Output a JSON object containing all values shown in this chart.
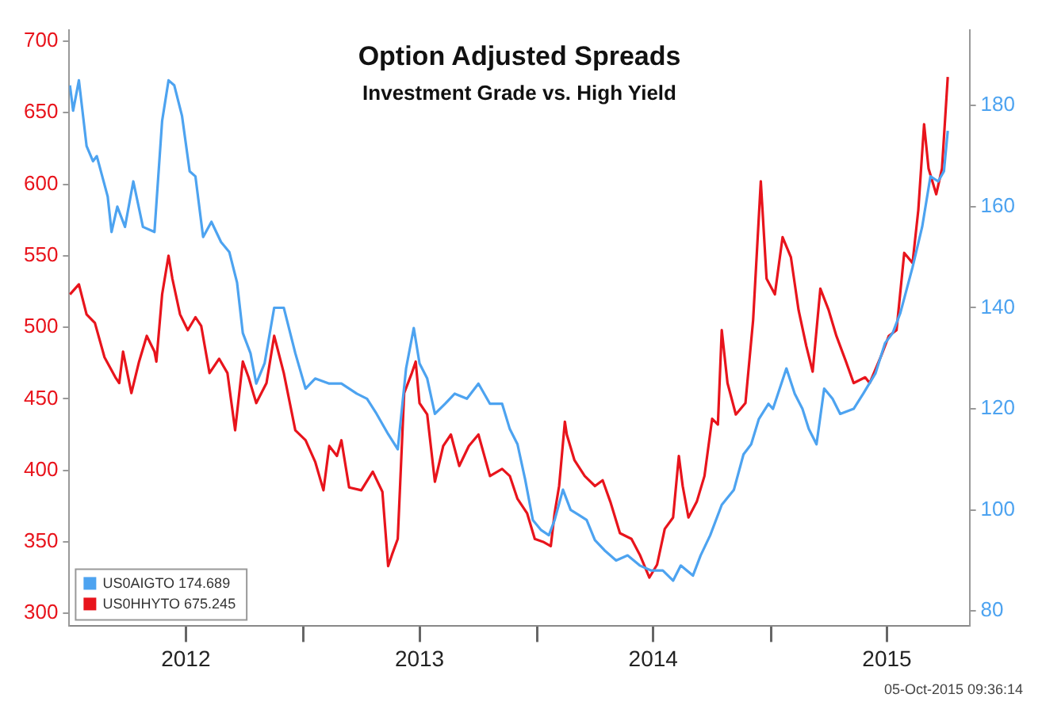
{
  "chart_data": {
    "type": "line",
    "title": "Option Adjusted Spreads",
    "subtitle": "Investment Grade vs. High Yield",
    "annotations": [
      "05-Oct-2015 09:36:14"
    ],
    "xlim": [
      "2012-01-01",
      "2015-11-07"
    ],
    "xticks": [
      {
        "value": "2012-07-01",
        "label": "2012"
      },
      {
        "value": "2013-01-01",
        "label": null
      },
      {
        "value": "2013-07-01",
        "label": "2013"
      },
      {
        "value": "2014-01-01",
        "label": null
      },
      {
        "value": "2014-07-01",
        "label": "2014"
      },
      {
        "value": "2015-01-01",
        "label": null
      },
      {
        "value": "2015-07-01",
        "label": "2015"
      }
    ],
    "ylim": [
      291,
      708
    ],
    "yticks": [
      300,
      350,
      400,
      450,
      500,
      550,
      600,
      650,
      700
    ],
    "y2lim": [
      77,
      195
    ],
    "y2ticks": [
      80,
      100,
      120,
      140,
      160,
      180
    ],
    "grid": false,
    "legend": "bottom left",
    "marker": "none",
    "line_style": "solid",
    "series": [
      {
        "name": "US0AIGTO 174.689",
        "color": "#4da3f0",
        "axis": "y2",
        "x": [
          "2012-01-02",
          "2012-01-07",
          "2012-01-16",
          "2012-01-28",
          "2012-02-07",
          "2012-02-13",
          "2012-03-01",
          "2012-03-07",
          "2012-03-16",
          "2012-03-28",
          "2012-04-10",
          "2012-04-25",
          "2012-05-13",
          "2012-05-25",
          "2012-06-04",
          "2012-06-13",
          "2012-06-25",
          "2012-07-07",
          "2012-07-16",
          "2012-07-28",
          "2012-08-10",
          "2012-08-25",
          "2012-09-07",
          "2012-09-19",
          "2012-09-28",
          "2012-10-10",
          "2012-10-19",
          "2012-11-01",
          "2012-11-16",
          "2012-12-01",
          "2012-12-19",
          "2013-01-04",
          "2013-01-19",
          "2013-02-10",
          "2013-03-01",
          "2013-03-25",
          "2013-04-10",
          "2013-04-25",
          "2013-05-13",
          "2013-05-28",
          "2013-06-10",
          "2013-06-22",
          "2013-07-01",
          "2013-07-13",
          "2013-07-25",
          "2013-08-10",
          "2013-08-25",
          "2013-09-13",
          "2013-10-01",
          "2013-10-19",
          "2013-11-07",
          "2013-11-19",
          "2013-12-01",
          "2013-12-13",
          "2013-12-25",
          "2014-01-07",
          "2014-01-19",
          "2014-01-28",
          "2014-02-10",
          "2014-02-22",
          "2014-03-07",
          "2014-03-19",
          "2014-04-01",
          "2014-04-16",
          "2014-05-04",
          "2014-05-22",
          "2014-06-10",
          "2014-06-28",
          "2014-07-16",
          "2014-08-01",
          "2014-08-13",
          "2014-09-01",
          "2014-09-13",
          "2014-09-28",
          "2014-10-16",
          "2014-11-04",
          "2014-11-19",
          "2014-12-01",
          "2014-12-13",
          "2014-12-28",
          "2015-01-04",
          "2015-01-25",
          "2015-02-07",
          "2015-02-19",
          "2015-03-01",
          "2015-03-13",
          "2015-03-25",
          "2015-04-07",
          "2015-04-19",
          "2015-05-10",
          "2015-05-25",
          "2015-06-13",
          "2015-06-28",
          "2015-07-10",
          "2015-07-22",
          "2015-08-10",
          "2015-08-25",
          "2015-09-07",
          "2015-09-19",
          "2015-09-28",
          "2015-10-04"
        ],
        "values": [
          184,
          179,
          185,
          172,
          169,
          170,
          162,
          155,
          160,
          156,
          165,
          156,
          155,
          177,
          185,
          184,
          178,
          167,
          166,
          154,
          157,
          153,
          151,
          145,
          135,
          131,
          125,
          129,
          140,
          140,
          131,
          124,
          126,
          125,
          125,
          123,
          122,
          119,
          115,
          112,
          128,
          136,
          129,
          126,
          119,
          121,
          123,
          122,
          125,
          121,
          121,
          116,
          113,
          106,
          98,
          96,
          95,
          98,
          104,
          100,
          99,
          98,
          94,
          92,
          90,
          91,
          89,
          88,
          88,
          86,
          89,
          87,
          91,
          95,
          101,
          104,
          111,
          113,
          118,
          121,
          120,
          128,
          123,
          120,
          116,
          113,
          124,
          122,
          119,
          120,
          123,
          127,
          133,
          135,
          139,
          148,
          156,
          166,
          165,
          167,
          175
        ]
      },
      {
        "name": "US0HHYTO 675.245",
        "color": "#e8141c",
        "x": [
          "2012-01-02",
          "2012-01-16",
          "2012-01-28",
          "2012-02-10",
          "2012-02-25",
          "2012-03-13",
          "2012-03-19",
          "2012-03-25",
          "2012-04-07",
          "2012-04-19",
          "2012-05-01",
          "2012-05-13",
          "2012-05-16",
          "2012-05-25",
          "2012-06-04",
          "2012-06-10",
          "2012-06-22",
          "2012-07-04",
          "2012-07-16",
          "2012-07-25",
          "2012-08-07",
          "2012-08-22",
          "2012-09-04",
          "2012-09-16",
          "2012-09-28",
          "2012-10-07",
          "2012-10-19",
          "2012-11-04",
          "2012-11-16",
          "2012-12-01",
          "2012-12-19",
          "2013-01-04",
          "2013-01-19",
          "2013-02-01",
          "2013-02-10",
          "2013-02-22",
          "2013-03-01",
          "2013-03-13",
          "2013-04-01",
          "2013-04-19",
          "2013-05-04",
          "2013-05-13",
          "2013-05-19",
          "2013-05-28",
          "2013-06-07",
          "2013-06-19",
          "2013-06-25",
          "2013-07-01",
          "2013-07-13",
          "2013-07-25",
          "2013-08-07",
          "2013-08-19",
          "2013-09-01",
          "2013-09-16",
          "2013-10-01",
          "2013-10-19",
          "2013-11-07",
          "2013-11-19",
          "2013-12-01",
          "2013-12-16",
          "2013-12-28",
          "2014-01-10",
          "2014-01-22",
          "2014-01-28",
          "2014-02-04",
          "2014-02-13",
          "2014-02-16",
          "2014-02-28",
          "2014-03-16",
          "2014-04-01",
          "2014-04-13",
          "2014-04-25",
          "2014-05-10",
          "2014-05-28",
          "2014-06-10",
          "2014-06-25",
          "2014-07-07",
          "2014-07-19",
          "2014-08-01",
          "2014-08-10",
          "2014-08-16",
          "2014-08-25",
          "2014-09-07",
          "2014-09-19",
          "2014-10-01",
          "2014-10-10",
          "2014-10-16",
          "2014-10-25",
          "2014-11-07",
          "2014-11-22",
          "2014-12-04",
          "2014-12-16",
          "2014-12-25",
          "2015-01-07",
          "2015-01-19",
          "2015-02-01",
          "2015-02-13",
          "2015-02-25",
          "2015-03-07",
          "2015-03-19",
          "2015-04-01",
          "2015-04-13",
          "2015-04-28",
          "2015-05-10",
          "2015-05-28",
          "2015-06-04",
          "2015-06-22",
          "2015-07-04",
          "2015-07-16",
          "2015-07-28",
          "2015-08-10",
          "2015-08-19",
          "2015-08-28",
          "2015-09-04",
          "2015-09-16",
          "2015-09-25",
          "2015-10-04"
        ],
        "values": [
          523,
          530,
          509,
          503,
          479,
          465,
          461,
          483,
          454,
          476,
          494,
          483,
          476,
          523,
          550,
          534,
          509,
          498,
          507,
          501,
          468,
          478,
          468,
          428,
          476,
          465,
          447,
          461,
          494,
          468,
          428,
          421,
          406,
          386,
          417,
          410,
          421,
          388,
          386,
          399,
          385,
          333,
          341,
          352,
          454,
          468,
          476,
          447,
          439,
          392,
          417,
          425,
          403,
          417,
          425,
          396,
          401,
          396,
          380,
          370,
          352,
          350,
          347,
          370,
          389,
          434,
          425,
          407,
          396,
          389,
          393,
          378,
          356,
          352,
          341,
          325,
          334,
          359,
          367,
          410,
          389,
          367,
          378,
          396,
          436,
          432,
          498,
          461,
          439,
          447,
          505,
          602,
          534,
          523,
          563,
          549,
          512,
          487,
          469,
          527,
          512,
          494,
          476,
          461,
          465,
          461,
          480,
          494,
          498,
          552,
          545,
          582,
          642,
          611,
          593,
          611,
          675
        ]
      }
    ]
  }
}
